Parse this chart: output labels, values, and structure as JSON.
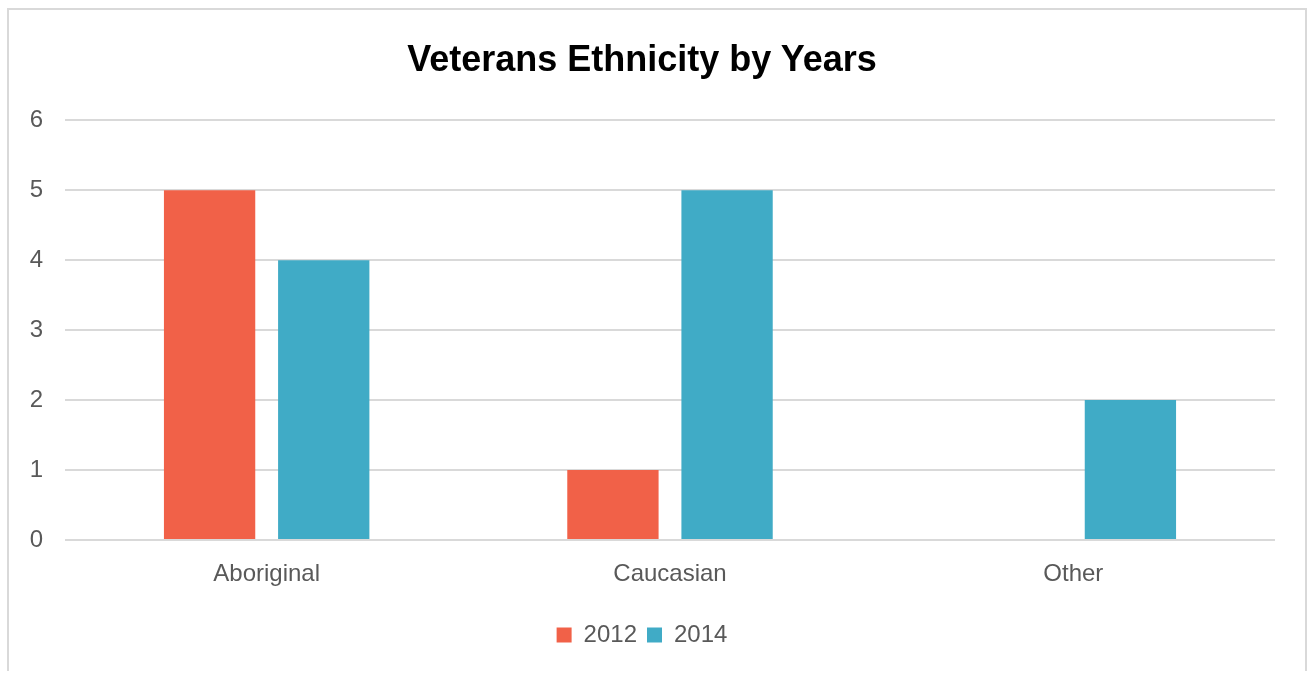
{
  "chart_data": {
    "type": "bar",
    "title": "Veterans Ethnicity by Years",
    "categories": [
      "Aboriginal",
      "Caucasian",
      "Other"
    ],
    "series": [
      {
        "name": "2012",
        "color": "#f16148",
        "values": [
          5,
          1,
          0
        ]
      },
      {
        "name": "2014",
        "color": "#40abc6",
        "values": [
          4,
          5,
          2
        ]
      }
    ],
    "ylim": [
      0,
      6
    ],
    "yticks": [
      0,
      1,
      2,
      3,
      4,
      5,
      6
    ],
    "grid": "y",
    "legend": "bottom"
  }
}
